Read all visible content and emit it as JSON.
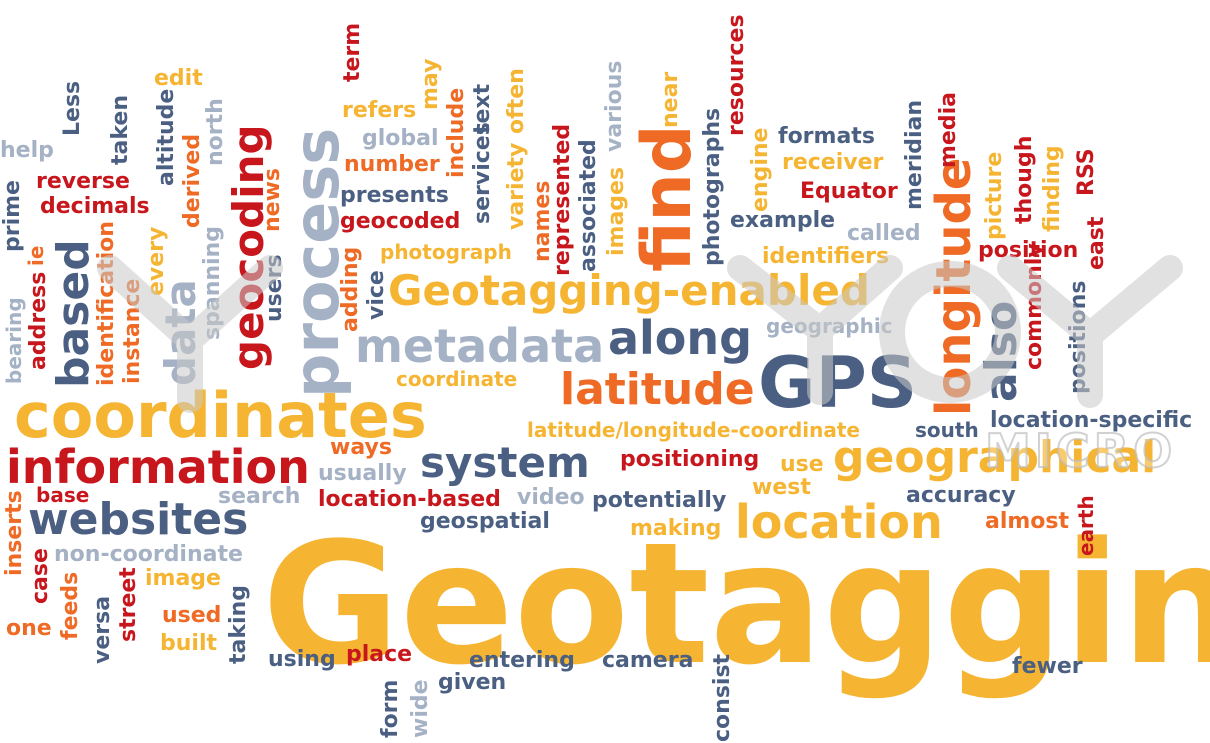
{
  "colors": {
    "yellow": "#f5b532",
    "orange": "#ee6a25",
    "red": "#c8161d",
    "slate": "#4a5f82",
    "gray": "#a5b1c4"
  },
  "watermark": {
    "letters": "YOY",
    "sub": "MICRO"
  },
  "words": [
    {
      "t": "Geotagging",
      "c": "yellow"
    },
    {
      "t": "coordinates",
      "c": "yellow"
    },
    {
      "t": "information",
      "c": "red"
    },
    {
      "t": "websites",
      "c": "slate"
    },
    {
      "t": "system",
      "c": "slate"
    },
    {
      "t": "geographical",
      "c": "yellow"
    },
    {
      "t": "location",
      "c": "yellow"
    },
    {
      "t": "Geotagging-enabled",
      "c": "yellow"
    },
    {
      "t": "metadata",
      "c": "gray"
    },
    {
      "t": "along",
      "c": "slate"
    },
    {
      "t": "latitude",
      "c": "orange"
    },
    {
      "t": "GPS",
      "c": "slate"
    },
    {
      "t": "process",
      "c": "gray"
    },
    {
      "t": "find",
      "c": "orange"
    },
    {
      "t": "longitude",
      "c": "orange"
    },
    {
      "t": "geocoding",
      "c": "red"
    },
    {
      "t": "based",
      "c": "slate"
    },
    {
      "t": "data",
      "c": "gray"
    },
    {
      "t": "also",
      "c": "slate"
    },
    {
      "t": "latitude/longitude-coordinate",
      "c": "yellow"
    },
    {
      "t": "location-specific",
      "c": "slate"
    },
    {
      "t": "south",
      "c": "slate"
    },
    {
      "t": "positioning",
      "c": "red"
    },
    {
      "t": "use",
      "c": "yellow"
    },
    {
      "t": "west",
      "c": "yellow"
    },
    {
      "t": "accuracy",
      "c": "slate"
    },
    {
      "t": "almost",
      "c": "orange"
    },
    {
      "t": "earth",
      "c": "red"
    },
    {
      "t": "ways",
      "c": "orange"
    },
    {
      "t": "usually",
      "c": "gray"
    },
    {
      "t": "search",
      "c": "gray"
    },
    {
      "t": "location-based",
      "c": "red"
    },
    {
      "t": "video",
      "c": "gray"
    },
    {
      "t": "potentially",
      "c": "slate"
    },
    {
      "t": "geospatial",
      "c": "slate"
    },
    {
      "t": "making",
      "c": "yellow"
    },
    {
      "t": "base",
      "c": "red"
    },
    {
      "t": "non-coordinate",
      "c": "gray"
    },
    {
      "t": "image",
      "c": "yellow"
    },
    {
      "t": "used",
      "c": "orange"
    },
    {
      "t": "built",
      "c": "yellow"
    },
    {
      "t": "one",
      "c": "orange"
    },
    {
      "t": "using",
      "c": "slate"
    },
    {
      "t": "place",
      "c": "red"
    },
    {
      "t": "entering",
      "c": "slate"
    },
    {
      "t": "camera",
      "c": "slate"
    },
    {
      "t": "given",
      "c": "slate"
    },
    {
      "t": "fewer",
      "c": "slate"
    },
    {
      "t": "coordinate",
      "c": "yellow"
    },
    {
      "t": "geographic",
      "c": "gray"
    },
    {
      "t": "photograph",
      "c": "yellow"
    },
    {
      "t": "identifiers",
      "c": "yellow"
    },
    {
      "t": "position",
      "c": "red"
    },
    {
      "t": "example",
      "c": "slate"
    },
    {
      "t": "called",
      "c": "gray"
    },
    {
      "t": "Equator",
      "c": "red"
    },
    {
      "t": "formats",
      "c": "slate"
    },
    {
      "t": "receiver",
      "c": "yellow"
    },
    {
      "t": "geocoded",
      "c": "red"
    },
    {
      "t": "presents",
      "c": "slate"
    },
    {
      "t": "number",
      "c": "orange"
    },
    {
      "t": "global",
      "c": "gray"
    },
    {
      "t": "refers",
      "c": "yellow"
    },
    {
      "t": "edit",
      "c": "yellow"
    },
    {
      "t": "help",
      "c": "gray"
    },
    {
      "t": "reverse",
      "c": "red"
    },
    {
      "t": "decimals",
      "c": "red"
    },
    {
      "t": "Less",
      "c": "slate"
    },
    {
      "t": "taken",
      "c": "slate"
    },
    {
      "t": "altitude",
      "c": "slate"
    },
    {
      "t": "derived",
      "c": "orange"
    },
    {
      "t": "north",
      "c": "gray"
    },
    {
      "t": "news",
      "c": "orange"
    },
    {
      "t": "prime",
      "c": "slate"
    },
    {
      "t": "ie",
      "c": "orange"
    },
    {
      "t": "bearing",
      "c": "gray"
    },
    {
      "t": "address",
      "c": "red"
    },
    {
      "t": "identification",
      "c": "orange"
    },
    {
      "t": "instance",
      "c": "orange"
    },
    {
      "t": "every",
      "c": "yellow"
    },
    {
      "t": "spanning",
      "c": "gray"
    },
    {
      "t": "users",
      "c": "slate"
    },
    {
      "t": "adding",
      "c": "orange"
    },
    {
      "t": "vice",
      "c": "slate"
    },
    {
      "t": "term",
      "c": "red"
    },
    {
      "t": "may",
      "c": "yellow"
    },
    {
      "t": "include",
      "c": "orange"
    },
    {
      "t": "services",
      "c": "slate"
    },
    {
      "t": "text",
      "c": "slate"
    },
    {
      "t": "variety",
      "c": "yellow"
    },
    {
      "t": "often",
      "c": "yellow"
    },
    {
      "t": "names",
      "c": "orange"
    },
    {
      "t": "represented",
      "c": "red"
    },
    {
      "t": "associated",
      "c": "slate"
    },
    {
      "t": "images",
      "c": "yellow"
    },
    {
      "t": "various",
      "c": "gray"
    },
    {
      "t": "near",
      "c": "yellow"
    },
    {
      "t": "photographs",
      "c": "slate"
    },
    {
      "t": "resources",
      "c": "red"
    },
    {
      "t": "engine",
      "c": "yellow"
    },
    {
      "t": "meridian",
      "c": "slate"
    },
    {
      "t": "media",
      "c": "red"
    },
    {
      "t": "picture",
      "c": "yellow"
    },
    {
      "t": "though",
      "c": "red"
    },
    {
      "t": "finding",
      "c": "yellow"
    },
    {
      "t": "RSS",
      "c": "red"
    },
    {
      "t": "east",
      "c": "red"
    },
    {
      "t": "commonly",
      "c": "red"
    },
    {
      "t": "positions",
      "c": "slate"
    },
    {
      "t": "inserts",
      "c": "orange"
    },
    {
      "t": "case",
      "c": "red"
    },
    {
      "t": "feeds",
      "c": "orange"
    },
    {
      "t": "versa",
      "c": "slate"
    },
    {
      "t": "street",
      "c": "red"
    },
    {
      "t": "taking",
      "c": "slate"
    },
    {
      "t": "form",
      "c": "slate"
    },
    {
      "t": "wide",
      "c": "gray"
    },
    {
      "t": "consist",
      "c": "slate"
    }
  ]
}
